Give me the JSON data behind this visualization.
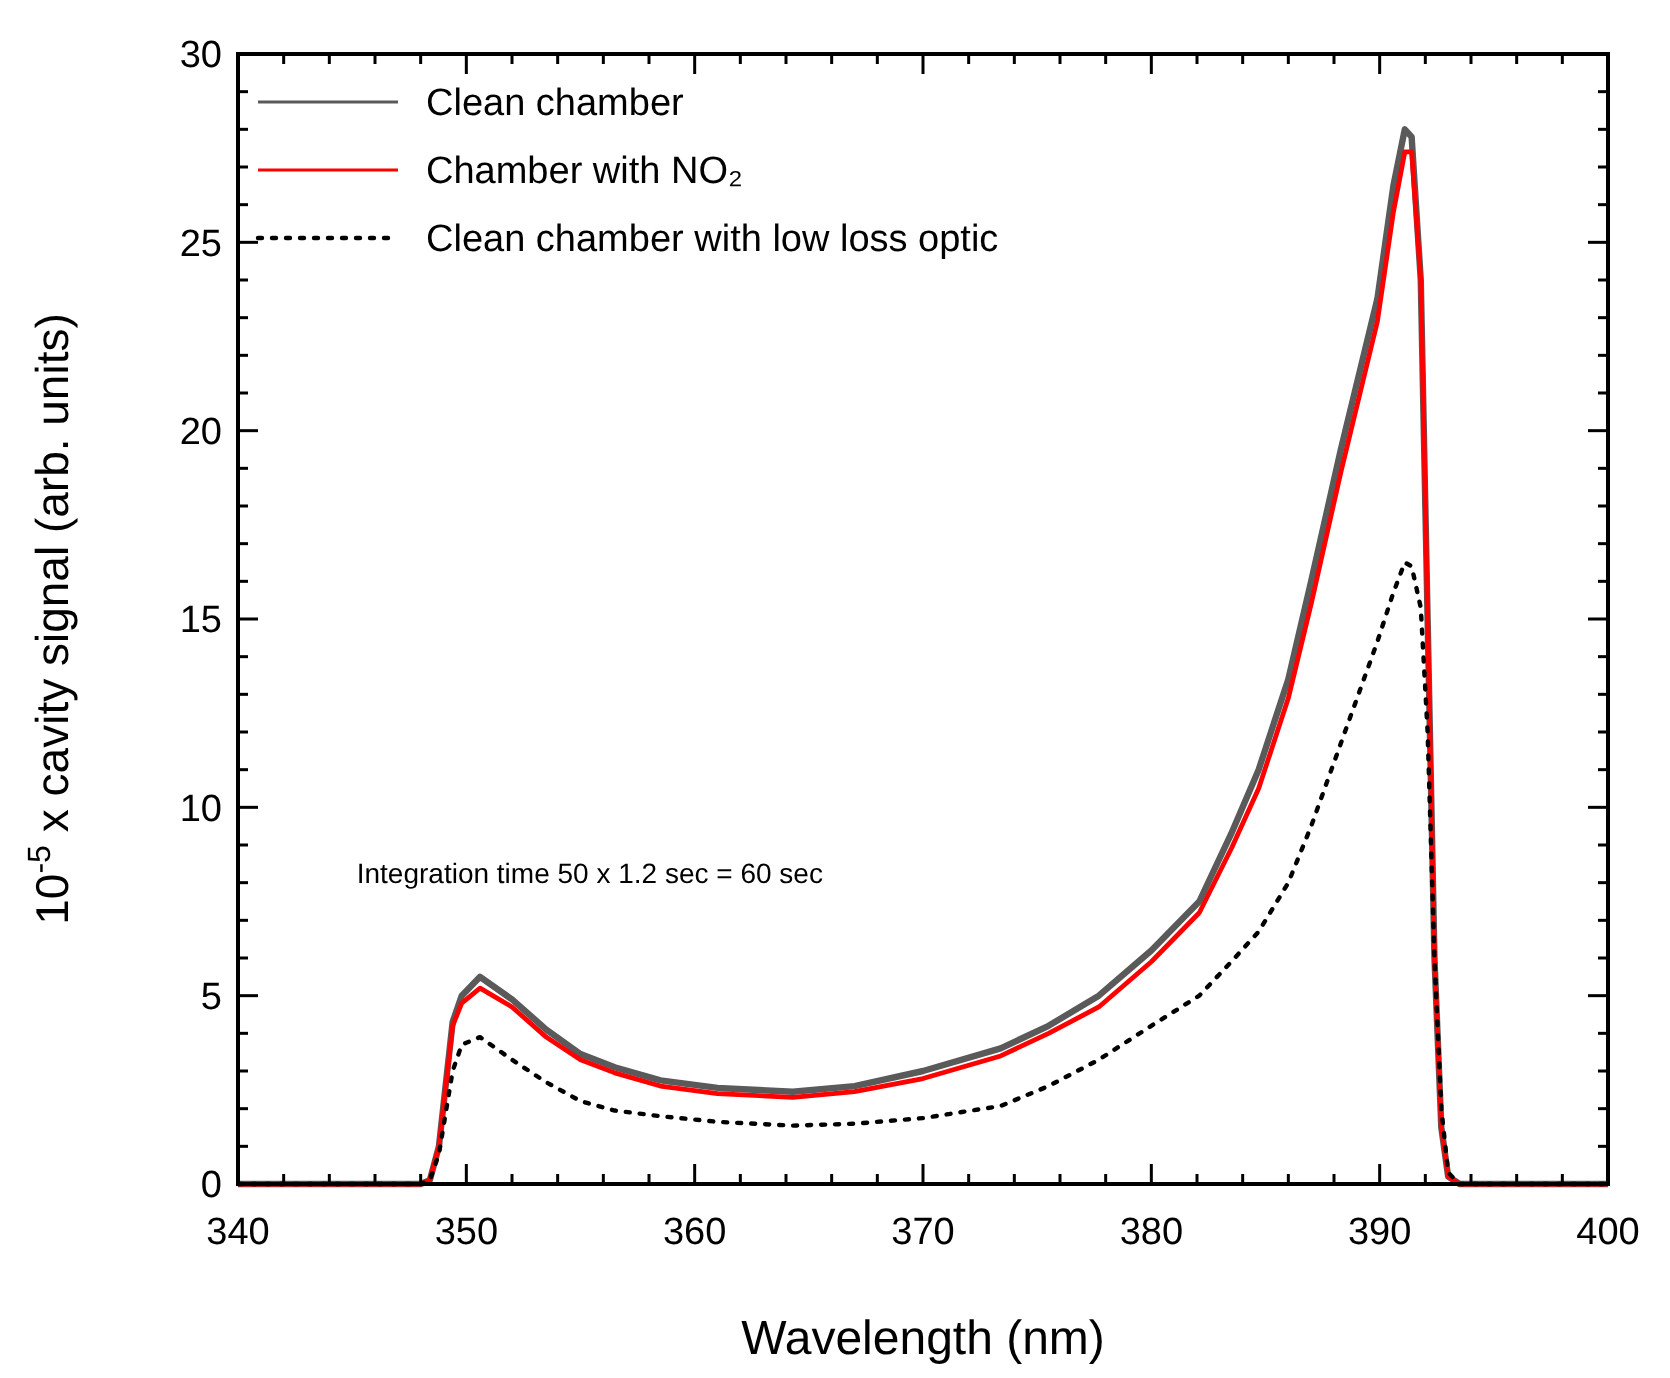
{
  "chart_data": {
    "type": "line",
    "xlabel": "Wavelength (nm)",
    "ylabel": "10$^{-5}$ x cavity signal (arb. units)",
    "xlim": [
      340,
      400
    ],
    "ylim": [
      0,
      30
    ],
    "xticks": [
      340,
      {
        "value": 342,
        "label": null
      },
      {
        "value": 344,
        "label": null
      },
      {
        "value": 346,
        "label": null
      },
      {
        "value": 348,
        "label": null
      },
      350,
      {
        "value": 352,
        "label": null
      },
      {
        "value": 354,
        "label": null
      },
      {
        "value": 356,
        "label": null
      },
      {
        "value": 358,
        "label": null
      },
      360,
      {
        "value": 362,
        "label": null
      },
      {
        "value": 364,
        "label": null
      },
      {
        "value": 366,
        "label": null
      },
      {
        "value": 368,
        "label": null
      },
      370,
      {
        "value": 372,
        "label": null
      },
      {
        "value": 374,
        "label": null
      },
      {
        "value": 376,
        "label": null
      },
      {
        "value": 378,
        "label": null
      },
      380,
      {
        "value": 382,
        "label": null
      },
      {
        "value": 384,
        "label": null
      },
      {
        "value": 386,
        "label": null
      },
      {
        "value": 388,
        "label": null
      },
      390,
      {
        "value": 392,
        "label": null
      },
      {
        "value": 394,
        "label": null
      },
      {
        "value": 396,
        "label": null
      },
      {
        "value": 398,
        "label": null
      },
      400
    ],
    "yticks": [
      0,
      {
        "value": 1,
        "label": null
      },
      {
        "value": 2,
        "label": null
      },
      {
        "value": 3,
        "label": null
      },
      {
        "value": 4,
        "label": null
      },
      5,
      {
        "value": 6,
        "label": null
      },
      {
        "value": 7,
        "label": null
      },
      {
        "value": 8,
        "label": null
      },
      {
        "value": 9,
        "label": null
      },
      10,
      {
        "value": 11,
        "label": null
      },
      {
        "value": 12,
        "label": null
      },
      {
        "value": 13,
        "label": null
      },
      {
        "value": 14,
        "label": null
      },
      15,
      {
        "value": 16,
        "label": null
      },
      {
        "value": 17,
        "label": null
      },
      {
        "value": 18,
        "label": null
      },
      {
        "value": 19,
        "label": null
      },
      20,
      {
        "value": 21,
        "label": null
      },
      {
        "value": 22,
        "label": null
      },
      {
        "value": 23,
        "label": null
      },
      {
        "value": 24,
        "label": null
      },
      25,
      {
        "value": 26,
        "label": null
      },
      {
        "value": 27,
        "label": null
      },
      {
        "value": 28,
        "label": null
      },
      {
        "value": 29,
        "label": null
      },
      30
    ],
    "grid": false,
    "legend": "top left",
    "marker": "none",
    "x": [
      340,
      348,
      348.4,
      348.8,
      349.4,
      349.8,
      350.6,
      352,
      353.5,
      355,
      356.5,
      358.5,
      361,
      364.3,
      367,
      370,
      373.4,
      375.5,
      377.7,
      380,
      382.1,
      383.5,
      384.7,
      386,
      387,
      388.3,
      389.9,
      390.6,
      391.1,
      391.4,
      391.8,
      392.1,
      392.4,
      392.7,
      393,
      393.5,
      400
    ],
    "series": [
      {
        "name": "Clean chamber",
        "color": "#5a5a5a",
        "line_style": "solid",
        "values": [
          0,
          0,
          0.1,
          1.0,
          4.3,
          5.0,
          5.5,
          4.9,
          4.1,
          3.45,
          3.1,
          2.75,
          2.55,
          2.45,
          2.6,
          3.0,
          3.6,
          4.2,
          5.0,
          6.2,
          7.5,
          9.3,
          11.0,
          13.4,
          16.0,
          19.5,
          23.5,
          26.5,
          28.0,
          27.8,
          24,
          15,
          6,
          1.5,
          0.2,
          0,
          0
        ]
      },
      {
        "name": "Chamber with NO₂",
        "color": "#ff0000",
        "line_style": "solid",
        "values": [
          0,
          0,
          0.1,
          1.0,
          4.2,
          4.8,
          5.2,
          4.7,
          3.9,
          3.3,
          2.95,
          2.6,
          2.4,
          2.3,
          2.45,
          2.8,
          3.4,
          4.0,
          4.7,
          5.9,
          7.2,
          8.9,
          10.5,
          12.9,
          15.4,
          18.9,
          22.9,
          25.8,
          27.4,
          27.4,
          24,
          15,
          6,
          1.5,
          0.2,
          0,
          0
        ]
      },
      {
        "name": "Clean chamber with low loss optic",
        "color": "#000000",
        "line_style": "dotted",
        "values": [
          0,
          0,
          0.1,
          0.8,
          3.0,
          3.7,
          3.9,
          3.3,
          2.7,
          2.2,
          1.95,
          1.8,
          1.65,
          1.55,
          1.6,
          1.75,
          2.07,
          2.6,
          3.3,
          4.2,
          5.0,
          5.9,
          6.7,
          8.0,
          9.5,
          11.7,
          14.4,
          15.7,
          16.5,
          16.4,
          15.3,
          12,
          6,
          2,
          0.3,
          0,
          0
        ]
      }
    ],
    "annotations": [
      "Integration time 50 x 1.2 sec = 60 sec"
    ]
  }
}
